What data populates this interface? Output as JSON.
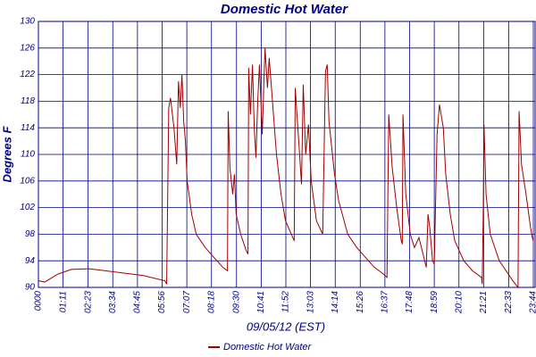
{
  "chart_data": {
    "type": "line",
    "title": "Domestic Hot Water",
    "x_label": "09/05/12 (EST)",
    "y_label": "Degrees F",
    "xlim": [
      0,
      1424
    ],
    "ylim": [
      90,
      130
    ],
    "grid": true,
    "legend": "bottom",
    "xticks": [
      {
        "value": 0,
        "label": "0000"
      },
      {
        "value": 71,
        "label": "01:11"
      },
      {
        "value": 143,
        "label": "02:23"
      },
      {
        "value": 214,
        "label": "03:34"
      },
      {
        "value": 285,
        "label": "04:45"
      },
      {
        "value": 356,
        "label": "05:56"
      },
      {
        "value": 427,
        "label": "07:07"
      },
      {
        "value": 498,
        "label": "08:18"
      },
      {
        "value": 570,
        "label": "09:30"
      },
      {
        "value": 641,
        "label": "10:41"
      },
      {
        "value": 712,
        "label": "11:52"
      },
      {
        "value": 783,
        "label": "13:03"
      },
      {
        "value": 854,
        "label": "14:14"
      },
      {
        "value": 926,
        "label": "15:26"
      },
      {
        "value": 997,
        "label": "16:37"
      },
      {
        "value": 1068,
        "label": "17:48"
      },
      {
        "value": 1139,
        "label": "18:59"
      },
      {
        "value": 1210,
        "label": "20:10"
      },
      {
        "value": 1281,
        "label": "21:21"
      },
      {
        "value": 1353,
        "label": "22:33"
      },
      {
        "value": 1424,
        "label": "23:44"
      }
    ],
    "yticks": [
      90,
      94,
      98,
      102,
      106,
      110,
      114,
      118,
      122,
      126,
      130
    ],
    "x": [
      0,
      18,
      56,
      95,
      146,
      223,
      300,
      364,
      369,
      375,
      380,
      390,
      398,
      403,
      408,
      413,
      418,
      423,
      428,
      441,
      454,
      480,
      505,
      531,
      544,
      546,
      551,
      559,
      564,
      569,
      582,
      598,
      603,
      605,
      610,
      616,
      621,
      626,
      631,
      636,
      644,
      652,
      659,
      664,
      672,
      685,
      698,
      711,
      736,
      739,
      749,
      757,
      762,
      769,
      777,
      785,
      800,
      818,
      826,
      831,
      836,
      852,
      864,
      890,
      916,
      941,
      967,
      993,
      1003,
      1008,
      1018,
      1031,
      1044,
      1047,
      1049,
      1057,
      1070,
      1082,
      1095,
      1116,
      1121,
      1126,
      1134,
      1139,
      1147,
      1154,
      1165,
      1172,
      1185,
      1198,
      1224,
      1249,
      1275,
      1277,
      1280,
      1282,
      1288,
      1300,
      1326,
      1365,
      1380,
      1383,
      1390,
      1403,
      1416,
      1421,
      1424
    ],
    "series": [
      {
        "name": "Domestic Hot Water",
        "color": "#a00000",
        "values": [
          91,
          90.8,
          92,
          92.7,
          92.8,
          92.3,
          91.8,
          91,
          90.5,
          117,
          118.5,
          114,
          108.5,
          121,
          117,
          122,
          115,
          112,
          106,
          101,
          98,
          96,
          94.5,
          93,
          92.5,
          116.5,
          108,
          104,
          107,
          101,
          98,
          95.5,
          95,
          123,
          116,
          123.5,
          114,
          109.5,
          118,
          123.5,
          113,
          126,
          120,
          124.5,
          119,
          110,
          104,
          100,
          97,
          120,
          112,
          105.5,
          120.5,
          110,
          114.5,
          106,
          100,
          98,
          122.5,
          123.5,
          115,
          107,
          103,
          98,
          96,
          94.5,
          93,
          92,
          91.5,
          116,
          108,
          102,
          97,
          96.5,
          116,
          104,
          98,
          96,
          97.5,
          93,
          101,
          99,
          94,
          93.5,
          113,
          117.5,
          114,
          107,
          101,
          97,
          94,
          92.5,
          91.5,
          90.5,
          102,
          114.5,
          104,
          98,
          94,
          91,
          90,
          116.5,
          108.5,
          104,
          99,
          97.5,
          97
        ]
      }
    ]
  }
}
